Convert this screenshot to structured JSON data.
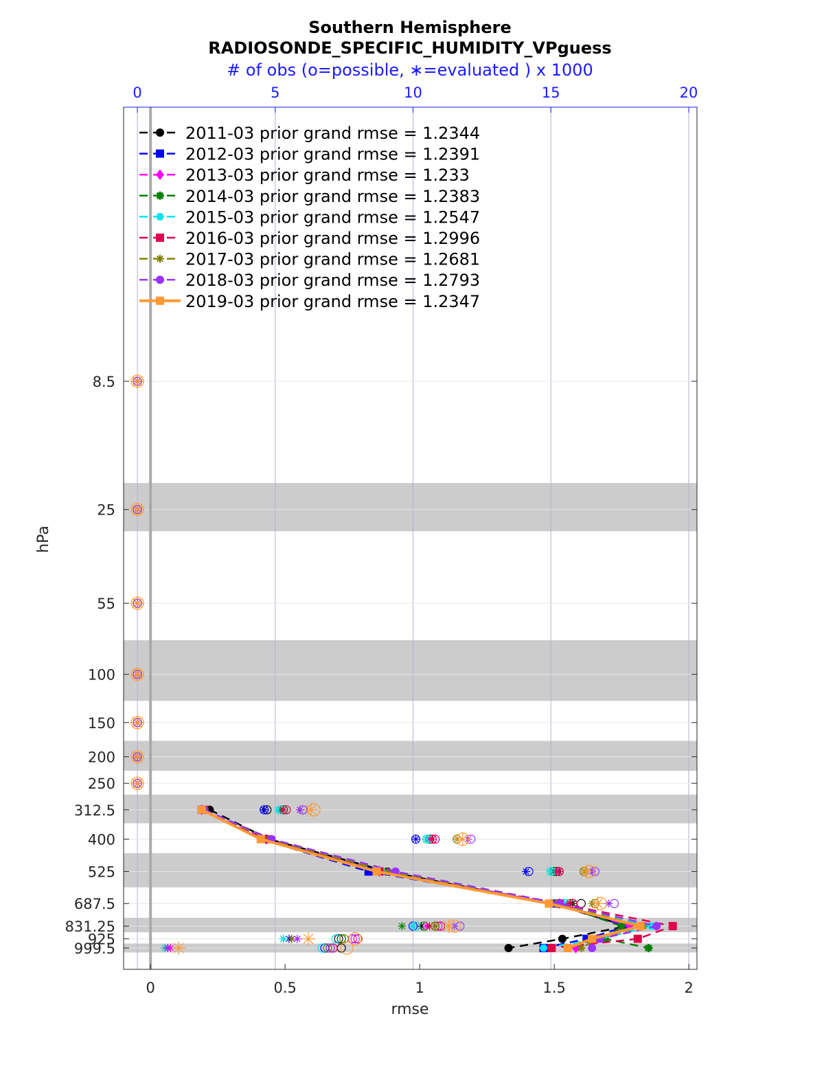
{
  "chart_data": {
    "type": "line",
    "title": "Southern Hemisphere",
    "subtitle": "RADIOSONDE_SPECIFIC_HUMIDITY_VPguess",
    "top_axis_label": "# of obs (o=possible, ∗=evaluated ) x 1000",
    "xlabel": "rmse",
    "ylabel": "hPa",
    "xlim": [
      -0.1,
      2.03
    ],
    "xticks": [
      "0",
      "0.5",
      "1",
      "1.5",
      "2"
    ],
    "top_xlim": [
      -0.5,
      20.3
    ],
    "top_xticks": [
      "0",
      "5",
      "10",
      "15",
      "20"
    ],
    "ylim_top_hpa": 8.5,
    "ylim_bottom_hpa": 999.5,
    "levels": [
      8.5,
      25,
      55,
      100,
      150,
      200,
      250,
      312.5,
      400,
      525,
      687.5,
      831.25,
      925,
      999.5
    ],
    "level_labels": [
      "8.5",
      "25",
      "55",
      "100",
      "150",
      "200",
      "250",
      "312.5",
      "400",
      "525",
      "687.5",
      "831.25",
      "925",
      "999.5"
    ],
    "shaded_bands": [
      [
        20,
        30
      ],
      [
        75,
        125
      ],
      [
        175,
        225
      ],
      [
        275,
        350
      ],
      [
        450,
        600
      ],
      [
        775,
        875
      ],
      [
        962.5,
        1037.5
      ]
    ],
    "grid": true,
    "legend_position": "top-left",
    "series": [
      {
        "name": "2011-03 prior grand rmse = 1.2344",
        "color": "#000000",
        "marker": "circle",
        "dashed": true,
        "rmse": [
          null,
          null,
          null,
          null,
          null,
          null,
          null,
          0.22,
          0.44,
          0.88,
          1.49,
          1.77,
          1.53,
          1.33
        ],
        "possible": [
          0,
          0,
          0,
          0,
          0,
          0,
          0,
          4.7,
          10.7,
          15.2,
          16.1,
          10.8,
          7.3,
          7.4
        ],
        "evaluated": [
          0,
          0,
          0,
          0,
          0,
          0,
          0,
          4.6,
          10.5,
          15.2,
          15.8,
          10.3,
          5.6,
          1.1
        ]
      },
      {
        "name": "2012-03 prior grand rmse = 1.2391",
        "color": "#0000ff",
        "marker": "square",
        "dashed": true,
        "rmse": [
          null,
          null,
          null,
          null,
          null,
          null,
          null,
          0.19,
          0.41,
          0.81,
          1.5,
          1.77,
          1.62,
          1.46
        ],
        "possible": [
          0,
          0,
          0,
          0,
          0,
          0,
          0,
          4.6,
          10.1,
          14.2,
          15.3,
          10.0,
          7.4,
          6.8
        ],
        "evaluated": [
          0,
          0,
          0,
          0,
          0,
          0,
          0,
          4.6,
          10.1,
          14.1,
          15.2,
          10.0,
          5.5,
          1.1
        ]
      },
      {
        "name": "2013-03 prior grand rmse = 1.233",
        "color": "#ff00ff",
        "marker": "diamond",
        "dashed": true,
        "rmse": [
          null,
          null,
          null,
          null,
          null,
          null,
          null,
          0.19,
          0.43,
          0.85,
          1.52,
          1.78,
          1.66,
          1.58
        ],
        "possible": [
          0,
          0,
          0,
          0,
          0,
          0,
          0,
          5.3,
          10.7,
          15.3,
          15.8,
          10.9,
          7.8,
          7.0
        ],
        "evaluated": [
          0,
          0,
          0,
          0,
          0,
          0,
          0,
          5.2,
          10.6,
          15.2,
          15.6,
          10.5,
          5.8,
          1.2
        ]
      },
      {
        "name": "2014-03 prior grand rmse = 1.2383",
        "color": "#008000",
        "marker": "star",
        "dashed": true,
        "rmse": [
          null,
          null,
          null,
          null,
          null,
          null,
          null,
          0.2,
          0.43,
          0.86,
          1.51,
          1.75,
          1.69,
          1.85
        ],
        "possible": [
          0,
          0,
          0,
          0,
          0,
          0,
          0,
          5.3,
          10.6,
          15.1,
          15.7,
          10.4,
          7.4,
          6.9
        ],
        "evaluated": [
          0,
          0,
          0,
          0,
          0,
          0,
          0,
          5.2,
          10.5,
          15.1,
          15.7,
          9.6,
          5.3,
          1.0
        ]
      },
      {
        "name": "2015-03 prior grand rmse = 1.2547",
        "color": "#00e5ee",
        "marker": "hexagon",
        "dashed": true,
        "rmse": [
          null,
          null,
          null,
          null,
          null,
          null,
          null,
          0.2,
          0.43,
          0.86,
          1.51,
          1.86,
          1.67,
          1.46
        ],
        "possible": [
          0,
          0,
          0,
          0,
          0,
          0,
          0,
          5.2,
          10.5,
          15.0,
          15.5,
          10.1,
          7.2,
          6.7
        ],
        "evaluated": [
          0,
          0,
          0,
          0,
          0,
          0,
          0,
          5.1,
          10.5,
          15.0,
          15.5,
          10.0,
          5.3,
          1.0
        ]
      },
      {
        "name": "2016-03 prior grand rmse = 1.2996",
        "color": "#e0004a",
        "marker": "square",
        "dashed": true,
        "rmse": [
          null,
          null,
          null,
          null,
          null,
          null,
          null,
          0.2,
          0.43,
          0.85,
          1.52,
          1.94,
          1.81,
          1.49
        ],
        "possible": [
          0,
          0,
          0,
          0,
          0,
          0,
          0,
          5.4,
          10.8,
          15.3,
          15.8,
          11.0,
          8.0,
          7.1
        ],
        "evaluated": [
          0,
          0,
          0,
          0,
          0,
          0,
          0,
          5.3,
          10.7,
          15.3,
          15.7,
          10.6,
          5.6,
          1.1
        ]
      },
      {
        "name": "2017-03 prior grand rmse = 1.2681",
        "color": "#808000",
        "marker": "asterisk",
        "dashed": true,
        "rmse": [
          null,
          null,
          null,
          null,
          null,
          null,
          null,
          0.2,
          0.44,
          0.88,
          1.51,
          1.83,
          1.66,
          1.6
        ],
        "possible": [
          0,
          0,
          0,
          0,
          0,
          0,
          0,
          6.0,
          11.6,
          16.2,
          16.6,
          10.8,
          7.5,
          6.9
        ],
        "evaluated": [
          0,
          0,
          0,
          0,
          0,
          0,
          0,
          5.9,
          11.6,
          16.2,
          16.5,
          10.8,
          5.6,
          1.1
        ]
      },
      {
        "name": "2018-03 prior grand rmse = 1.2793",
        "color": "#9933ff",
        "marker": "circle",
        "dashed": true,
        "rmse": [
          null,
          null,
          null,
          null,
          null,
          null,
          null,
          0.2,
          0.45,
          0.91,
          1.52,
          1.88,
          1.67,
          1.64
        ],
        "possible": [
          0,
          0,
          0,
          0,
          0,
          0,
          0,
          6.0,
          12.1,
          16.6,
          17.3,
          11.7,
          7.9,
          7.0
        ],
        "evaluated": [
          0,
          0,
          0,
          0,
          0,
          0,
          0,
          5.9,
          12.0,
          16.5,
          17.1,
          11.5,
          5.8,
          1.1
        ]
      },
      {
        "name": "2019-03 prior grand rmse = 1.2347",
        "color": "#ff9933",
        "marker": "square",
        "dashed": false,
        "rmse": [
          null,
          null,
          null,
          null,
          null,
          null,
          null,
          0.19,
          0.41,
          0.84,
          1.48,
          1.82,
          1.64,
          1.55
        ],
        "possible": [
          0,
          0,
          0,
          0,
          0,
          0,
          0,
          6.4,
          11.8,
          16.4,
          16.8,
          11.5,
          7.9,
          7.6
        ],
        "evaluated": [
          0,
          0,
          0,
          0,
          0,
          0,
          0,
          6.3,
          11.8,
          16.3,
          16.7,
          11.3,
          6.2,
          1.5
        ]
      }
    ]
  }
}
